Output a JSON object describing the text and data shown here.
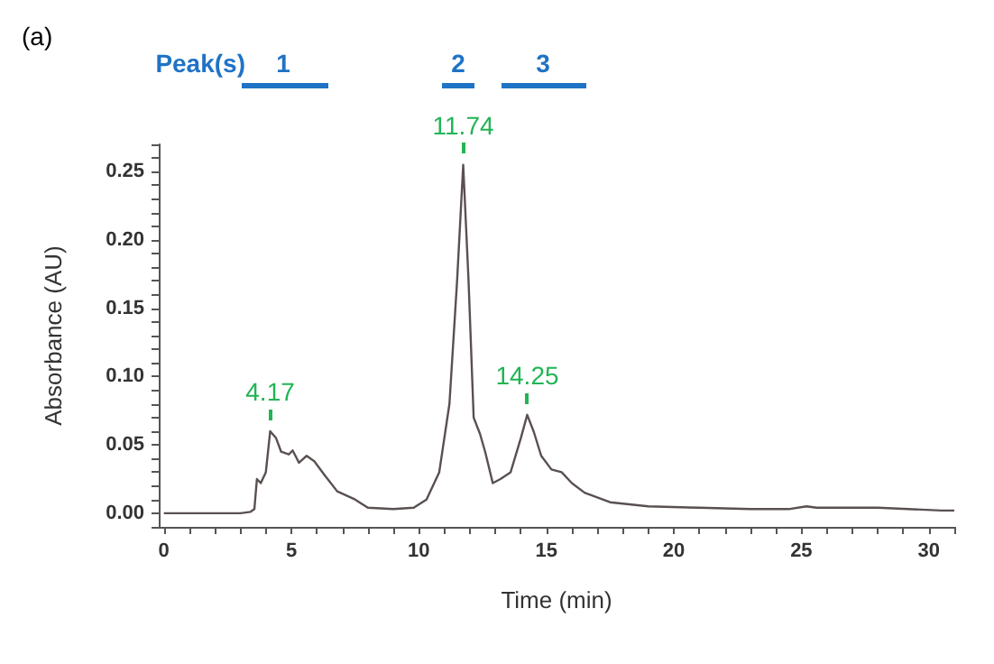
{
  "chart_data": {
    "type": "line",
    "xlabel": "Time (min)",
    "ylabel": "Absorbance (AU)",
    "annotations": [
      "(a)",
      "Peak(s)",
      "1",
      "2",
      "3",
      {
        "text": "4.17",
        "x": 4.17,
        "y": 0.06
      },
      {
        "text": "11.74",
        "x": 11.74,
        "y": 0.255
      },
      {
        "text": "14.25",
        "x": 14.25,
        "y": 0.072
      }
    ],
    "series": [
      {
        "color": "#5a5050",
        "x": [
          0,
          3.0,
          3.4,
          3.55,
          3.65,
          3.8,
          4.0,
          4.17,
          4.4,
          4.6,
          4.9,
          5.05,
          5.3,
          5.6,
          5.9,
          6.3,
          6.8,
          7.5,
          8.0,
          9.0,
          9.8,
          10.3,
          10.8,
          11.2,
          11.5,
          11.74,
          11.95,
          12.15,
          12.4,
          12.6,
          12.9,
          13.2,
          13.6,
          14.0,
          14.25,
          14.5,
          14.8,
          15.2,
          15.6,
          16.0,
          16.5,
          17.5,
          19,
          21,
          23,
          24.5,
          25.2,
          25.6,
          28,
          30.5,
          31
        ],
        "values": [
          0,
          0,
          0.001,
          0.003,
          0.025,
          0.022,
          0.03,
          0.06,
          0.055,
          0.045,
          0.043,
          0.046,
          0.037,
          0.042,
          0.038,
          0.028,
          0.016,
          0.01,
          0.004,
          0.003,
          0.004,
          0.01,
          0.03,
          0.08,
          0.17,
          0.255,
          0.17,
          0.07,
          0.058,
          0.045,
          0.022,
          0.025,
          0.03,
          0.055,
          0.072,
          0.06,
          0.042,
          0.032,
          0.03,
          0.022,
          0.015,
          0.008,
          0.005,
          0.004,
          0.003,
          0.003,
          0.005,
          0.004,
          0.004,
          0.002,
          0.002
        ]
      }
    ],
    "xlim": [
      -0.2,
      31
    ],
    "xticks": [
      0,
      5,
      10,
      15,
      20,
      25,
      30
    ],
    "ylim": [
      -0.01,
      0.27
    ],
    "yticks": [
      {
        "value": 0,
        "label": "0.00"
      },
      {
        "value": 0.05,
        "label": "0.05"
      },
      {
        "value": 0.1,
        "label": "0.10"
      },
      {
        "value": 0.15,
        "label": "0.15"
      },
      {
        "value": 0.2,
        "label": "0.20"
      },
      {
        "value": 0.25,
        "label": "0.25"
      }
    ],
    "grid": false,
    "marker": "none",
    "line_style": "solid"
  }
}
